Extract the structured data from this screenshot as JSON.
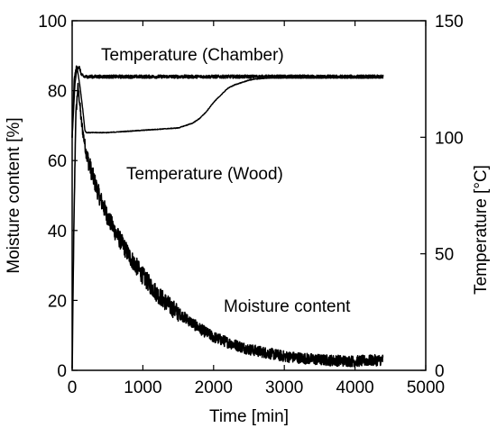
{
  "chart_data": {
    "type": "line",
    "title": "",
    "xlabel": "Time [min]",
    "ylabel_left": "Moisture content [%]",
    "ylabel_right": "Temperature [°C]",
    "xlim": [
      0,
      5000
    ],
    "ylim_left": [
      0,
      100
    ],
    "ylim_right": [
      0,
      150
    ],
    "grid": false,
    "x_ticks": [
      "0",
      "1000",
      "2000",
      "3000",
      "4000",
      "5000"
    ],
    "y_ticks_left": [
      "0",
      "20",
      "40",
      "60",
      "80",
      "100"
    ],
    "y_ticks_right": [
      "0",
      "50",
      "100",
      "150"
    ],
    "annotations": {
      "chamber": "Temperature (Chamber)",
      "wood": "Temperature (Wood)",
      "moisture": "Moisture content"
    },
    "series": [
      {
        "axis": "left",
        "color": "#000000",
        "x": [
          0,
          20,
          50,
          80,
          100,
          130,
          200,
          300,
          400,
          500,
          600,
          800,
          1000,
          1200,
          1400,
          1600,
          1800,
          2000,
          2200,
          2500,
          2800,
          3000,
          3500,
          4000,
          4400
        ],
        "y": [
          0,
          35,
          72,
          81,
          78,
          71,
          62,
          55,
          49,
          44,
          40,
          33,
          27,
          22,
          18,
          15,
          12,
          9.5,
          8,
          6,
          4.8,
          4,
          3,
          2.6,
          3
        ]
      },
      {
        "axis": "right",
        "color": "#000000",
        "x": [
          0,
          30,
          60,
          100,
          130,
          160,
          200,
          400,
          1000,
          2000,
          3000,
          4400
        ],
        "y": [
          100,
          125,
          130,
          130,
          127,
          126,
          126,
          126,
          126,
          126,
          126,
          126
        ]
      },
      {
        "axis": "right",
        "color": "#000000",
        "x": [
          0,
          40,
          70,
          110,
          150,
          180,
          200,
          500,
          1000,
          1500,
          1700,
          1800,
          1900,
          2000,
          2100,
          2200,
          2300,
          2400,
          2500,
          2600,
          2800,
          3000,
          3500,
          4400
        ],
        "y": [
          100,
          123,
          130,
          122,
          112,
          103,
          102,
          102,
          103,
          104,
          106,
          108,
          111,
          115,
          118,
          121,
          122.5,
          123.5,
          124.5,
          125,
          125.5,
          125.5,
          125.5,
          125.5
        ]
      }
    ]
  }
}
